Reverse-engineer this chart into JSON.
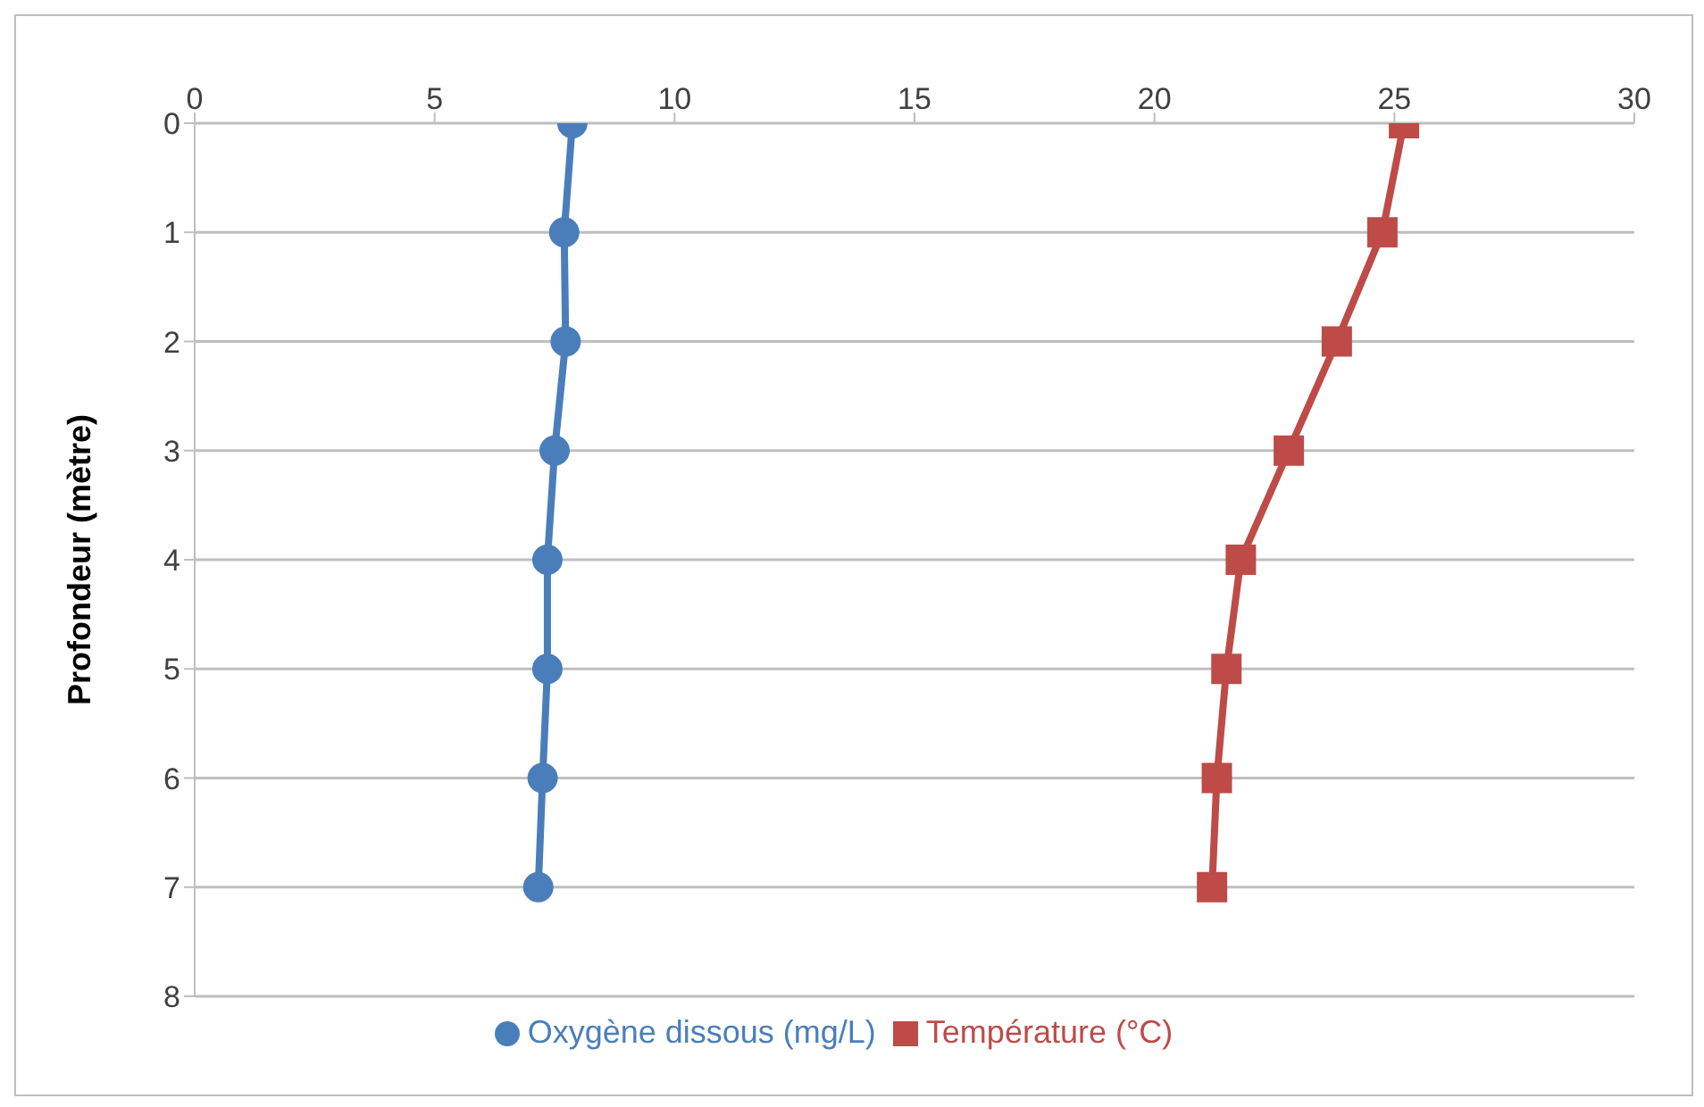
{
  "chart_data": {
    "type": "line",
    "ylabel": "Profondeur (mètre)",
    "series": [
      {
        "name": "Oxygène dissous (mg/L)",
        "color": "#4a7ebb",
        "marker": "circle",
        "x": [
          7.87,
          7.7,
          7.73,
          7.5,
          7.35,
          7.35,
          7.25,
          7.16
        ],
        "values": [
          0,
          1,
          2,
          3,
          4,
          5,
          6,
          7
        ]
      },
      {
        "name": "Température (°C)",
        "color": "#be4b48",
        "marker": "square",
        "x": [
          25.2,
          24.75,
          23.8,
          22.8,
          21.8,
          21.5,
          21.3,
          21.2
        ],
        "values": [
          0,
          1,
          2,
          3,
          4,
          5,
          6,
          7
        ]
      }
    ],
    "xlim": [
      0,
      30
    ],
    "xticks": [
      0,
      5,
      10,
      15,
      20,
      25,
      30
    ],
    "ylim": [
      8,
      0
    ],
    "yticks": [
      0,
      1,
      2,
      3,
      4,
      5,
      6,
      7,
      8
    ],
    "grid": "y",
    "legend": "bottom",
    "line_style": "solid"
  }
}
